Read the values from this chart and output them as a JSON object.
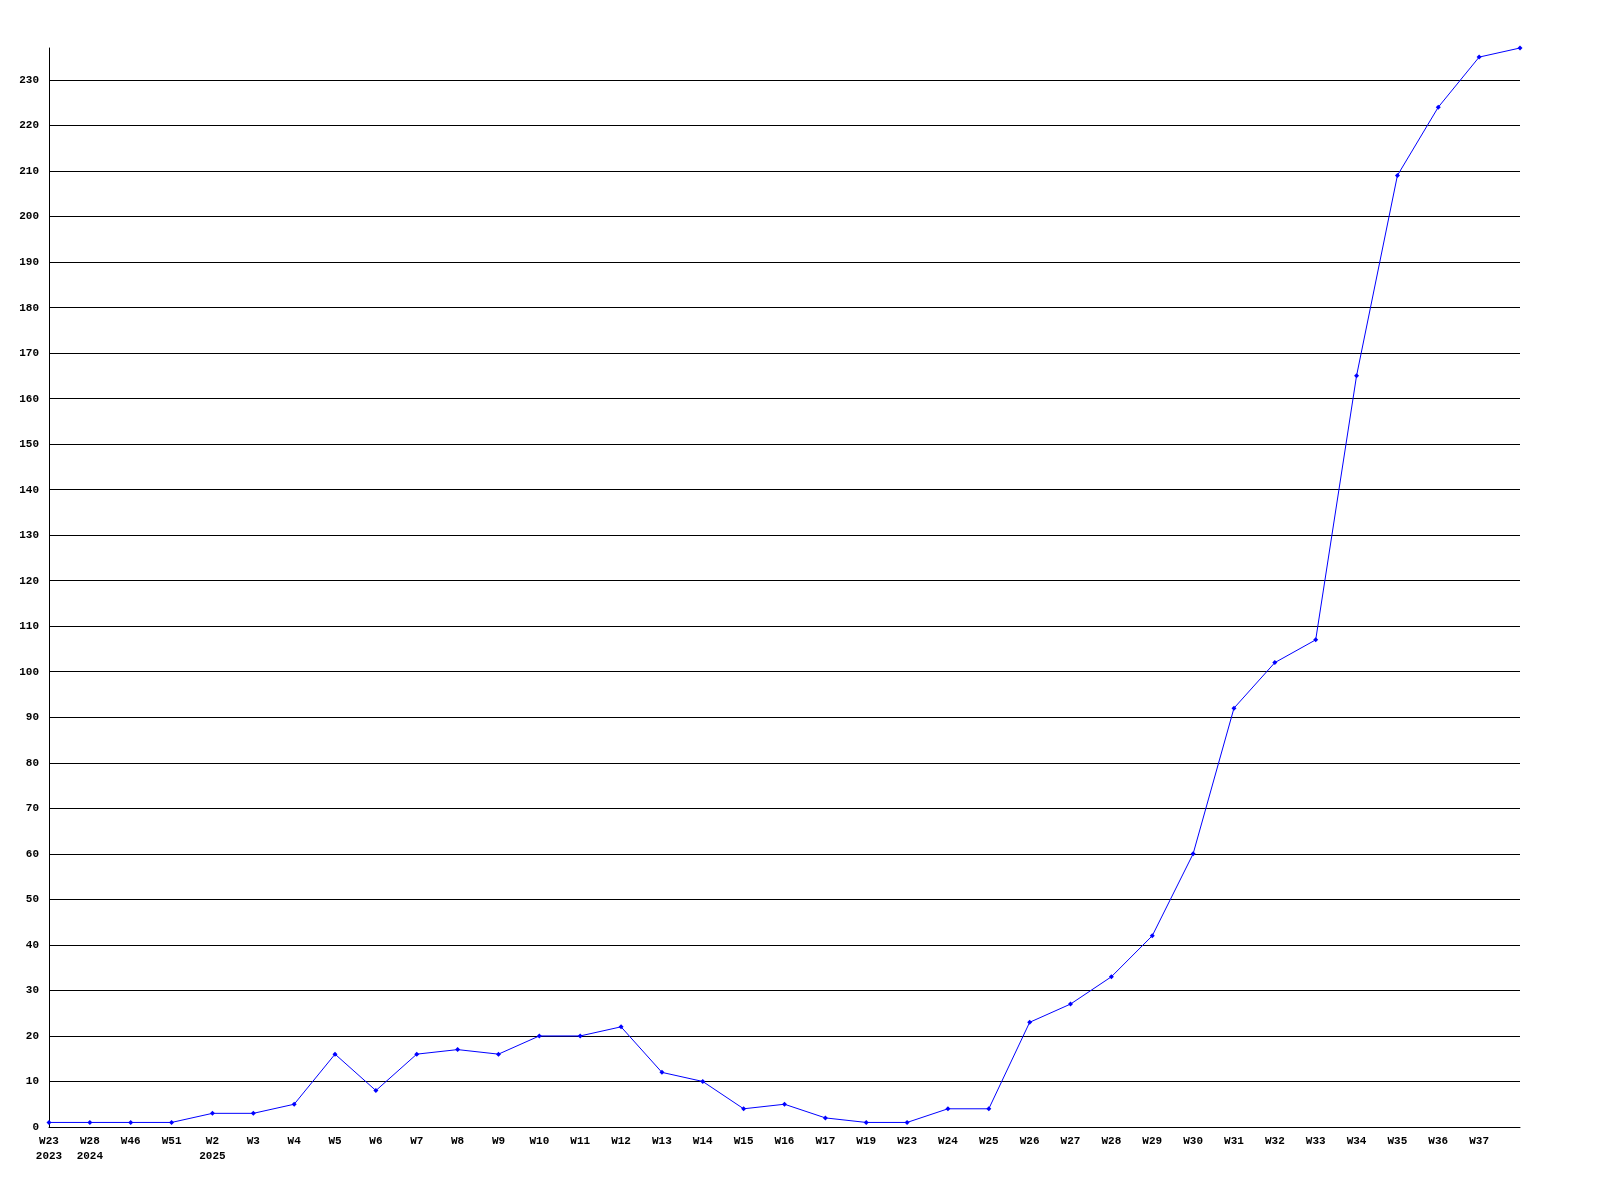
{
  "chart_data": {
    "type": "line",
    "categories": [
      "W23\n2023",
      "W28\n2024",
      "W46",
      "W51",
      "W2\n2025",
      "W3",
      "W4",
      "W5",
      "W6",
      "W7",
      "W8",
      "W9",
      "W10",
      "W11",
      "W12",
      "W13",
      "W14",
      "W15",
      "W16",
      "W17",
      "W19",
      "W23",
      "W24",
      "W25",
      "W26",
      "W27",
      "W28",
      "W29",
      "W30",
      "W31",
      "W32",
      "W33",
      "W34",
      "W35",
      "W36",
      "W37",
      null
    ],
    "series": [
      {
        "color": "#0000ff",
        "values": [
          1,
          1,
          1,
          1,
          3,
          3,
          5,
          16,
          8,
          16,
          17,
          16,
          20,
          20,
          22,
          12,
          10,
          4,
          5,
          2,
          1,
          1,
          4,
          4,
          23,
          27,
          33,
          42,
          60,
          92,
          102,
          107,
          165,
          209,
          224,
          235,
          237
        ]
      }
    ],
    "ylim": [
      0,
      237
    ],
    "yticks": [
      0,
      10,
      20,
      30,
      40,
      50,
      60,
      70,
      80,
      90,
      100,
      110,
      120,
      130,
      140,
      150,
      160,
      170,
      180,
      190,
      200,
      210,
      220,
      230
    ],
    "grid": "y",
    "marker": "diamond",
    "line_style": "solid"
  }
}
